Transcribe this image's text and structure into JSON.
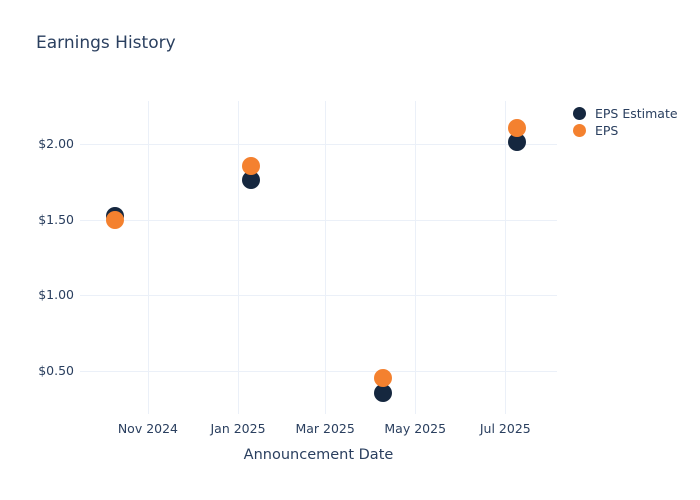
{
  "chart_data": {
    "type": "scatter",
    "title": "Earnings History",
    "xlabel": "Announcement Date",
    "ylabel": "",
    "x": [
      "2024-10-10",
      "2025-01-10",
      "2025-04-09",
      "2025-07-09"
    ],
    "x_days": [
      9,
      101,
      190,
      281
    ],
    "x_axis": {
      "domain_days": [
        -15,
        308
      ],
      "ticks": [
        {
          "day": 31,
          "label": "Nov 2024"
        },
        {
          "day": 92,
          "label": "Jan 2025"
        },
        {
          "day": 151,
          "label": "Mar 2025"
        },
        {
          "day": 212,
          "label": "May 2025"
        },
        {
          "day": 273,
          "label": "Jul 2025"
        }
      ]
    },
    "y_axis": {
      "domain": [
        0.22,
        2.28
      ],
      "ticks": [
        {
          "value": 0.5,
          "label": "$0.50"
        },
        {
          "value": 1.0,
          "label": "$1.00"
        },
        {
          "value": 1.5,
          "label": "$1.50"
        },
        {
          "value": 2.0,
          "label": "$2.00"
        }
      ]
    },
    "series": [
      {
        "name": "EPS Estimate",
        "color": "#15273f",
        "values": [
          1.52,
          1.76,
          0.36,
          2.01
        ]
      },
      {
        "name": "EPS",
        "color": "#f4812f",
        "values": [
          1.5,
          1.85,
          0.46,
          2.1
        ]
      }
    ],
    "legend_position": "top-right",
    "grid": true,
    "colors": {
      "text": "#2a3f5f",
      "gridline": "#ebf0f8",
      "background": "#ffffff"
    }
  }
}
